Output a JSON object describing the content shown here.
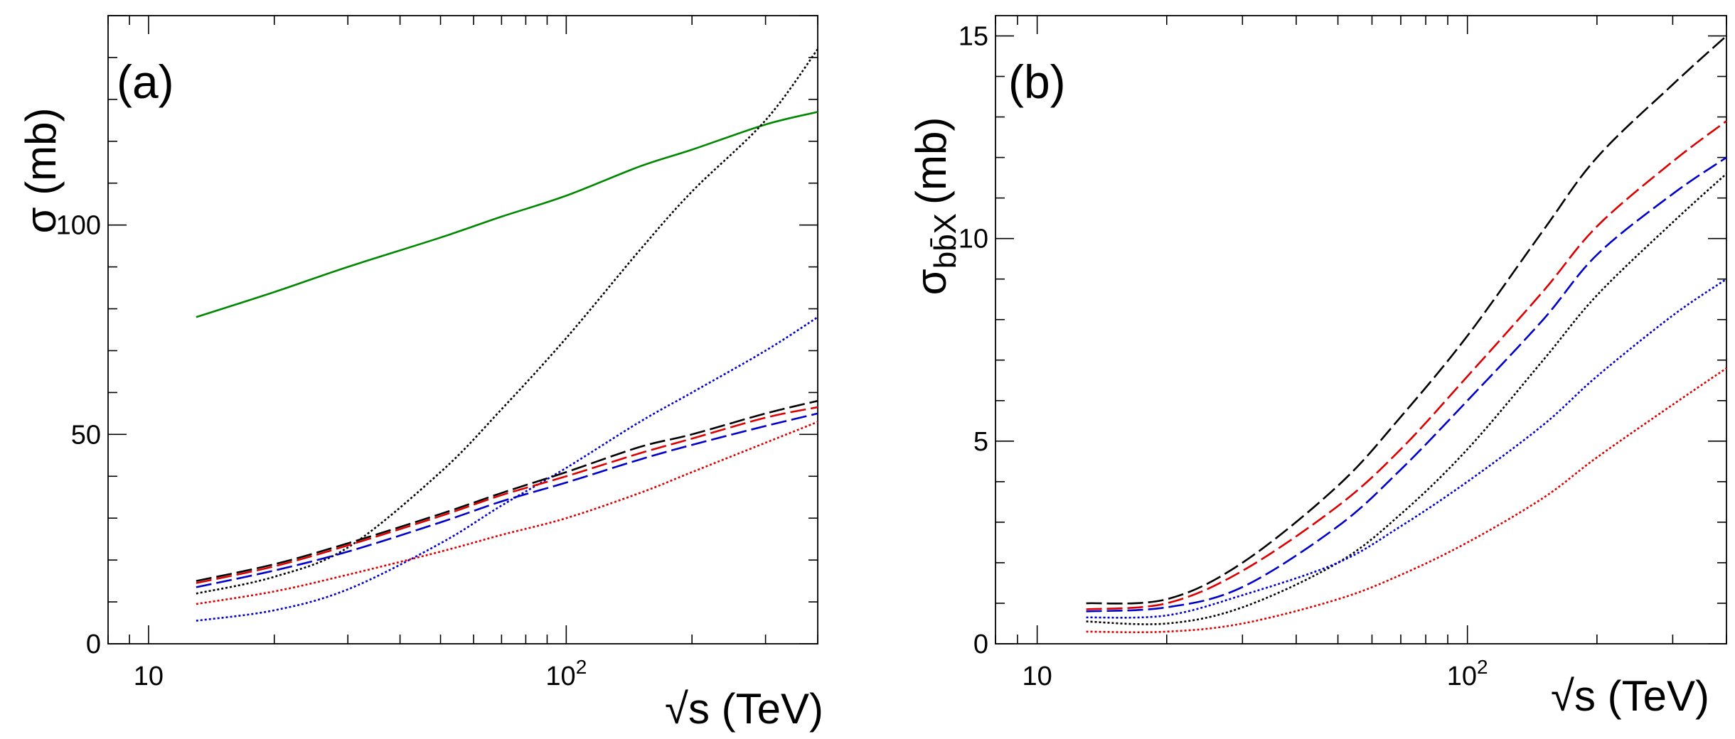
{
  "chart_data": [
    {
      "type": "line",
      "panel_label": "(a)",
      "ylabel": "σ (mb)",
      "xlabel": "√s (TeV)",
      "xscale": "log",
      "xlim": [
        8,
        400
      ],
      "ylim": [
        0,
        150
      ],
      "x_tick_labels": [
        {
          "value": 10,
          "text": "10"
        },
        {
          "value": 100,
          "base": "10",
          "exp": "2"
        }
      ],
      "y_tick_labels": [
        {
          "value": 0,
          "text": "0"
        },
        {
          "value": 50,
          "text": "50"
        },
        {
          "value": 100,
          "text": "100"
        }
      ],
      "x": [
        13,
        20,
        30,
        50,
        70,
        100,
        150,
        200,
        300,
        400
      ],
      "series": [
        {
          "name": "green solid",
          "color": "#008800",
          "dash": "solid",
          "values": [
            78,
            84,
            90,
            97,
            102,
            107,
            114,
            118,
            124,
            127
          ]
        },
        {
          "name": "black dotted (steep)",
          "color": "#000000",
          "dash": "dotted",
          "values": [
            12,
            16,
            23,
            41,
            56,
            73,
            94,
            108,
            125,
            142
          ]
        },
        {
          "name": "blue dotted (steep)",
          "color": "#0000cc",
          "dash": "dotted",
          "values": [
            5.5,
            8,
            13,
            24,
            33,
            42,
            53,
            60,
            70,
            78
          ]
        },
        {
          "name": "black dashed",
          "color": "#000000",
          "dash": "dashed",
          "values": [
            15,
            19,
            24,
            31,
            36,
            41,
            47,
            50,
            55,
            58
          ]
        },
        {
          "name": "red dashed",
          "color": "#dd0000",
          "dash": "dashed",
          "values": [
            14.5,
            18.5,
            23.5,
            30.5,
            35.5,
            40,
            45.5,
            49,
            54,
            56.5
          ]
        },
        {
          "name": "blue dashed",
          "color": "#0000cc",
          "dash": "dashed",
          "values": [
            13.5,
            17.5,
            22,
            29,
            34,
            38.5,
            44,
            47.5,
            52,
            55
          ]
        },
        {
          "name": "red dotted",
          "color": "#dd0000",
          "dash": "dotted",
          "values": [
            9.5,
            12.5,
            16.5,
            22,
            26,
            30,
            36,
            41,
            48,
            53
          ]
        }
      ]
    },
    {
      "type": "line",
      "panel_label": "(b)",
      "ylabel": "σbb̄X (mb)",
      "ylabel_main": "σ",
      "ylabel_sub": "bb̄X",
      "ylabel_unit": "(mb)",
      "xlabel": "√s (TeV)",
      "xscale": "log",
      "xlim": [
        8,
        400
      ],
      "ylim": [
        0,
        15.5
      ],
      "x_tick_labels": [
        {
          "value": 10,
          "text": "10"
        },
        {
          "value": 100,
          "base": "10",
          "exp": "2"
        }
      ],
      "y_tick_labels": [
        {
          "value": 0,
          "text": "0"
        },
        {
          "value": 5,
          "text": "5"
        },
        {
          "value": 10,
          "text": "10"
        },
        {
          "value": 15,
          "text": "15"
        }
      ],
      "x": [
        13,
        20,
        30,
        50,
        70,
        100,
        150,
        200,
        300,
        400
      ],
      "series": [
        {
          "name": "black dashed",
          "color": "#000000",
          "dash": "dashed",
          "values": [
            1.0,
            1.1,
            2.0,
            3.9,
            5.6,
            7.6,
            10.2,
            12.0,
            13.8,
            15.0
          ]
        },
        {
          "name": "red dashed",
          "color": "#dd0000",
          "dash": "dashed",
          "values": [
            0.85,
            1.0,
            1.8,
            3.4,
            4.8,
            6.6,
            8.7,
            10.3,
            11.9,
            12.9
          ]
        },
        {
          "name": "blue dashed",
          "color": "#0000cc",
          "dash": "dashed",
          "values": [
            0.8,
            0.9,
            1.4,
            2.9,
            4.3,
            6.0,
            8.0,
            9.6,
            11.1,
            12.0
          ]
        },
        {
          "name": "black dotted",
          "color": "#000000",
          "dash": "dotted",
          "values": [
            0.55,
            0.5,
            0.9,
            2.0,
            3.2,
            4.8,
            7.0,
            8.6,
            10.4,
            11.6
          ]
        },
        {
          "name": "blue dotted",
          "color": "#0000cc",
          "dash": "dotted",
          "values": [
            0.65,
            0.7,
            1.2,
            2.0,
            2.9,
            4.0,
            5.4,
            6.6,
            8.1,
            9.0
          ]
        },
        {
          "name": "red dotted",
          "color": "#dd0000",
          "dash": "dotted",
          "values": [
            0.3,
            0.3,
            0.5,
            1.1,
            1.7,
            2.5,
            3.6,
            4.6,
            5.9,
            6.8
          ]
        }
      ]
    }
  ]
}
